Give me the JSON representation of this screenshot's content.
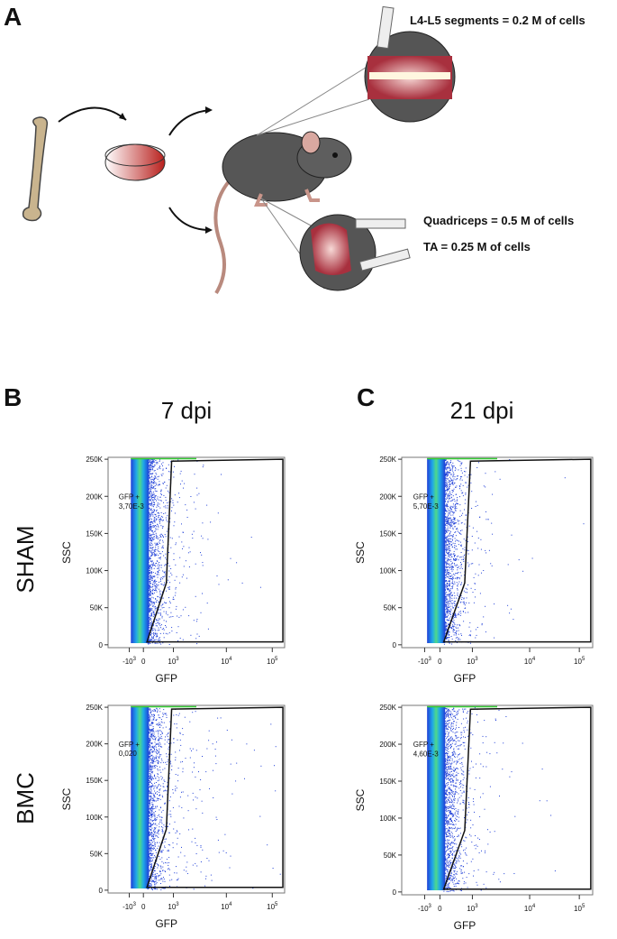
{
  "panel_a": {
    "label": "A",
    "annotations": [
      "L4-L5 segments = 0.2 M of cells",
      "Quadriceps = 0.5 M of cells",
      "TA = 0.25 M of cells"
    ]
  },
  "panel_b": {
    "label": "B",
    "column_title": "7 dpi"
  },
  "panel_c": {
    "label": "C",
    "column_title": "21 dpi"
  },
  "row_labels": [
    "SHAM",
    "BMC"
  ],
  "axes": {
    "y_label": "SSC",
    "x_label": "GFP",
    "yticks": [
      "0",
      "50K",
      "100K",
      "150K",
      "200K",
      "250K"
    ],
    "xticks": [
      {
        "base": "-10",
        "exp": "3"
      },
      {
        "base": "0"
      },
      {
        "base": "10",
        "exp": "3"
      },
      {
        "base": "10",
        "exp": "4"
      },
      {
        "base": "10",
        "exp": "5"
      }
    ]
  },
  "plots": [
    {
      "gate_label": "GFP +",
      "gate_value": "3,70E-3"
    },
    {
      "gate_label": "GFP +",
      "gate_value": "5,70E-3"
    },
    {
      "gate_label": "GFP +",
      "gate_value": "0,020"
    },
    {
      "gate_label": "GFP +",
      "gate_value": "4,60E-3"
    }
  ]
}
